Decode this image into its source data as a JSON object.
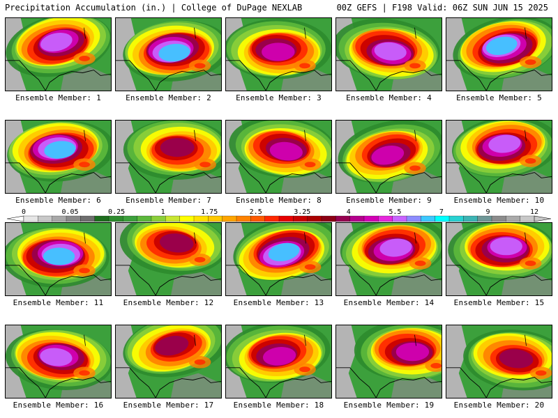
{
  "header": {
    "title": "Precipitation Accumulation (in.) | College of DuPage NEXLAB",
    "run": "00Z GEFS | F198 Valid: 06Z SUN JUN 15 2025"
  },
  "colorbar": {
    "ticks": [
      "0",
      "0.05",
      "0.25",
      "1",
      "1.75",
      "2.5",
      "3.25",
      "4",
      "5.5",
      "7",
      "9",
      "12"
    ],
    "colors": [
      "#e6e6e6",
      "#c8c8c8",
      "#a8a8a8",
      "#8a8a8a",
      "#6e6e6e",
      "#1e6e1e",
      "#2e8b2e",
      "#3ca03c",
      "#5cb83c",
      "#8bcf3a",
      "#c8e632",
      "#ffff00",
      "#ffe100",
      "#ffc800",
      "#ffa500",
      "#ff8200",
      "#ff5a00",
      "#ff2800",
      "#e60000",
      "#c80000",
      "#aa0000",
      "#8c0014",
      "#960050",
      "#b4008c",
      "#d200b4",
      "#e628dc",
      "#c864ff",
      "#8c8cff",
      "#3cc8ff",
      "#00ffff",
      "#28d2d2",
      "#3cb4b4",
      "#6e9696",
      "#8c8c8c",
      "#aaaaaa",
      "#c8c8c8"
    ]
  },
  "members": [
    {
      "label": "Ensemble Member: 1",
      "intensity": 0.8,
      "peak": [
        0.5,
        0.35
      ]
    },
    {
      "label": "Ensemble Member: 2",
      "intensity": 0.85,
      "peak": [
        0.55,
        0.45
      ]
    },
    {
      "label": "Ensemble Member: 3",
      "intensity": 0.7,
      "peak": [
        0.5,
        0.45
      ]
    },
    {
      "label": "Ensemble Member: 4",
      "intensity": 0.8,
      "peak": [
        0.5,
        0.45
      ]
    },
    {
      "label": "Ensemble Member: 5",
      "intensity": 0.85,
      "peak": [
        0.55,
        0.4
      ]
    },
    {
      "label": "Ensemble Member: 6",
      "intensity": 0.9,
      "peak": [
        0.5,
        0.4
      ]
    },
    {
      "label": "Ensemble Member: 7",
      "intensity": 0.5,
      "peak": [
        0.6,
        0.4
      ]
    },
    {
      "label": "Ensemble Member: 8",
      "intensity": 0.65,
      "peak": [
        0.55,
        0.4
      ]
    },
    {
      "label": "Ensemble Member: 9",
      "intensity": 0.65,
      "peak": [
        0.5,
        0.45
      ]
    },
    {
      "label": "Ensemble Member: 10",
      "intensity": 0.8,
      "peak": [
        0.55,
        0.35
      ]
    },
    {
      "label": "Ensemble Member: 11",
      "intensity": 0.85,
      "peak": [
        0.5,
        0.45
      ]
    },
    {
      "label": "Ensemble Member: 12",
      "intensity": 0.6,
      "peak": [
        0.55,
        0.3
      ]
    },
    {
      "label": "Ensemble Member: 13",
      "intensity": 0.85,
      "peak": [
        0.55,
        0.4
      ]
    },
    {
      "label": "Ensemble Member: 14",
      "intensity": 0.75,
      "peak": [
        0.55,
        0.35
      ]
    },
    {
      "label": "Ensemble Member: 15",
      "intensity": 0.75,
      "peak": [
        0.55,
        0.35
      ]
    },
    {
      "label": "Ensemble Member: 16",
      "intensity": 0.75,
      "peak": [
        0.5,
        0.45
      ]
    },
    {
      "label": "Ensemble Member: 17",
      "intensity": 0.6,
      "peak": [
        0.55,
        0.3
      ]
    },
    {
      "label": "Ensemble Member: 18",
      "intensity": 0.65,
      "peak": [
        0.5,
        0.4
      ]
    },
    {
      "label": "Ensemble Member: 19",
      "intensity": 0.65,
      "peak": [
        0.7,
        0.35
      ]
    },
    {
      "label": "Ensemble Member: 20",
      "intensity": 0.6,
      "peak": [
        0.65,
        0.45
      ]
    }
  ]
}
